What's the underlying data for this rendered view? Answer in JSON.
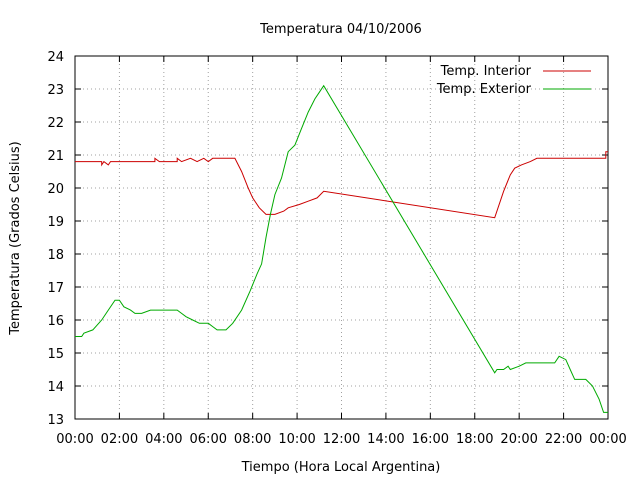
{
  "chart_data": {
    "type": "line",
    "title": "Temperatura 04/10/2006",
    "xlabel": "Tiempo (Hora Local Argentina)",
    "ylabel": "Temperatura (Grados Celsius)",
    "xlim": [
      0,
      24
    ],
    "ylim": [
      13,
      24
    ],
    "x_ticks": [
      "00:00",
      "02:00",
      "04:00",
      "06:00",
      "08:00",
      "10:00",
      "12:00",
      "14:00",
      "16:00",
      "18:00",
      "20:00",
      "22:00",
      "00:00"
    ],
    "y_ticks": [
      "13",
      "14",
      "15",
      "16",
      "17",
      "18",
      "19",
      "20",
      "21",
      "22",
      "23",
      "24"
    ],
    "grid": true,
    "legend_position": "top-right",
    "x_units": "hours since 00:00",
    "series": [
      {
        "name": "Temp. Interior",
        "color": "#cc0000",
        "points": [
          [
            0.0,
            20.8
          ],
          [
            1.2,
            20.8
          ],
          [
            1.2,
            20.7
          ],
          [
            1.3,
            20.8
          ],
          [
            1.5,
            20.7
          ],
          [
            1.6,
            20.8
          ],
          [
            3.6,
            20.8
          ],
          [
            3.6,
            20.9
          ],
          [
            3.8,
            20.8
          ],
          [
            4.6,
            20.8
          ],
          [
            4.6,
            20.9
          ],
          [
            4.8,
            20.8
          ],
          [
            5.2,
            20.9
          ],
          [
            5.5,
            20.8
          ],
          [
            5.8,
            20.9
          ],
          [
            6.0,
            20.8
          ],
          [
            6.2,
            20.9
          ],
          [
            7.2,
            20.9
          ],
          [
            7.5,
            20.5
          ],
          [
            7.8,
            20.0
          ],
          [
            8.0,
            19.7
          ],
          [
            8.3,
            19.4
          ],
          [
            8.6,
            19.2
          ],
          [
            9.0,
            19.2
          ],
          [
            9.4,
            19.3
          ],
          [
            9.6,
            19.4
          ],
          [
            10.1,
            19.5
          ],
          [
            10.5,
            19.6
          ],
          [
            10.9,
            19.7
          ],
          [
            11.2,
            19.9
          ],
          [
            18.9,
            19.1
          ],
          [
            19.3,
            19.9
          ],
          [
            19.6,
            20.4
          ],
          [
            19.8,
            20.6
          ],
          [
            20.1,
            20.7
          ],
          [
            20.5,
            20.8
          ],
          [
            20.8,
            20.9
          ],
          [
            23.9,
            20.9
          ],
          [
            23.9,
            21.1
          ],
          [
            24.0,
            21.1
          ]
        ]
      },
      {
        "name": "Temp. Exterior",
        "color": "#00aa00",
        "points": [
          [
            0.0,
            15.5
          ],
          [
            0.3,
            15.5
          ],
          [
            0.4,
            15.6
          ],
          [
            0.8,
            15.7
          ],
          [
            1.2,
            16.0
          ],
          [
            1.5,
            16.3
          ],
          [
            1.8,
            16.6
          ],
          [
            2.0,
            16.6
          ],
          [
            2.2,
            16.4
          ],
          [
            2.5,
            16.3
          ],
          [
            2.7,
            16.2
          ],
          [
            3.0,
            16.2
          ],
          [
            3.4,
            16.3
          ],
          [
            4.6,
            16.3
          ],
          [
            4.8,
            16.2
          ],
          [
            5.0,
            16.1
          ],
          [
            5.3,
            16.0
          ],
          [
            5.6,
            15.9
          ],
          [
            6.0,
            15.9
          ],
          [
            6.2,
            15.8
          ],
          [
            6.4,
            15.7
          ],
          [
            6.8,
            15.7
          ],
          [
            7.1,
            15.9
          ],
          [
            7.5,
            16.3
          ],
          [
            7.9,
            16.9
          ],
          [
            8.2,
            17.4
          ],
          [
            8.4,
            17.7
          ],
          [
            8.6,
            18.5
          ],
          [
            8.8,
            19.2
          ],
          [
            9.0,
            19.8
          ],
          [
            9.3,
            20.3
          ],
          [
            9.6,
            21.1
          ],
          [
            9.9,
            21.3
          ],
          [
            10.2,
            21.8
          ],
          [
            10.5,
            22.3
          ],
          [
            10.8,
            22.7
          ],
          [
            11.0,
            22.9
          ],
          [
            11.2,
            23.1
          ],
          [
            18.9,
            14.4
          ],
          [
            19.0,
            14.5
          ],
          [
            19.3,
            14.5
          ],
          [
            19.5,
            14.6
          ],
          [
            19.6,
            14.5
          ],
          [
            20.0,
            14.6
          ],
          [
            20.3,
            14.7
          ],
          [
            21.6,
            14.7
          ],
          [
            21.8,
            14.9
          ],
          [
            22.1,
            14.8
          ],
          [
            22.3,
            14.5
          ],
          [
            22.5,
            14.2
          ],
          [
            23.0,
            14.2
          ],
          [
            23.3,
            14.0
          ],
          [
            23.6,
            13.6
          ],
          [
            23.8,
            13.2
          ],
          [
            24.0,
            13.2
          ]
        ]
      }
    ]
  }
}
